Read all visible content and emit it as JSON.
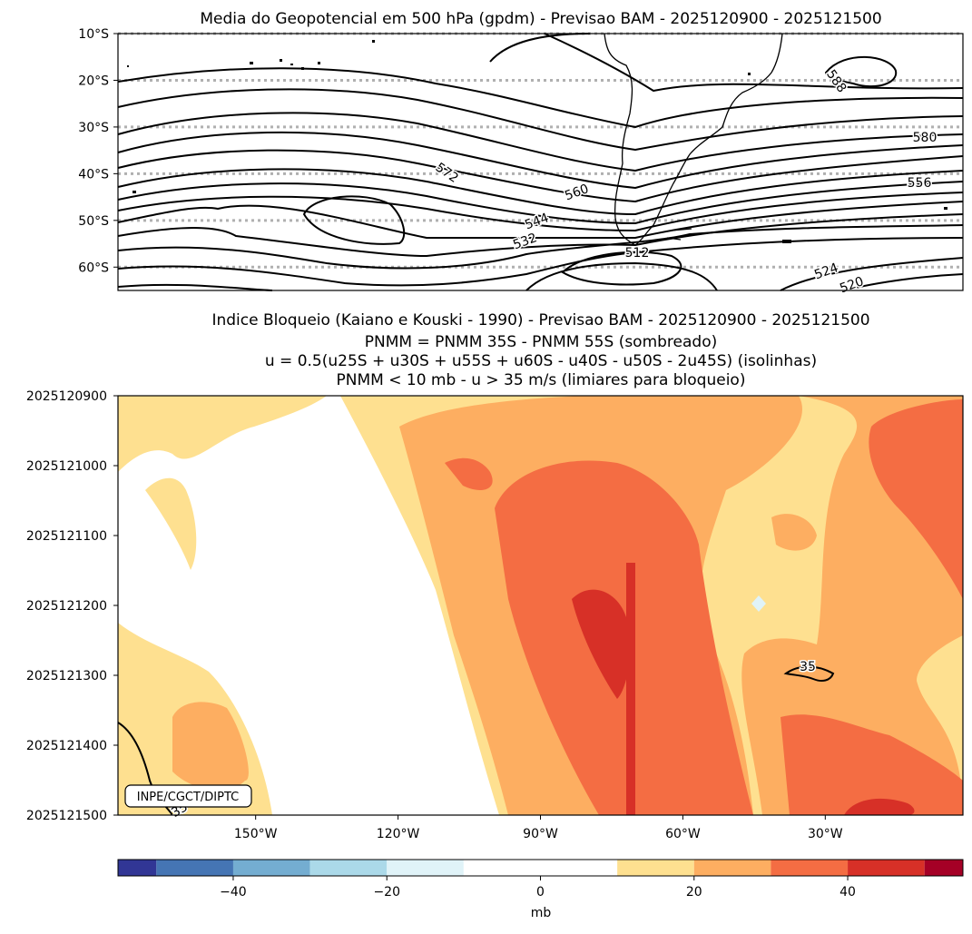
{
  "chart_data": [
    {
      "type": "contour",
      "title": "Media do Geopotencial em 500 hPa (gpdm) - Previsao BAM - 2025120900 - 2025121500",
      "y_tick_labels": [
        "10°S",
        "20°S",
        "30°S",
        "40°S",
        "50°S",
        "60°S"
      ],
      "ylim": [
        -65,
        -10
      ],
      "grid_latitudes": [
        -10,
        -20,
        -30,
        -40,
        -50,
        -60
      ],
      "grid": "dotted latitude lines",
      "contour_labels": [
        "588",
        "580",
        "572",
        "560",
        "556",
        "544",
        "532",
        "524",
        "520",
        "512"
      ],
      "contour_levels_gpdm": [
        508,
        512,
        516,
        520,
        524,
        528,
        532,
        536,
        540,
        544,
        548,
        552,
        556,
        560,
        564,
        568,
        572,
        576,
        580,
        584,
        588
      ],
      "colors": {
        "contour": "#000000",
        "grid": "#b0b0b0"
      }
    },
    {
      "type": "heatmap",
      "title_lines": [
        "Indice Bloqueio (Kaiano e Kouski - 1990) - Previsao BAM - 2025120900 - 2025121500",
        "PNMM = PNMM 35S - PNMM 55S (sombreado)",
        "u = 0.5(u25S + u30S + u55S + u60S - u40S - u50S - 2u45S) (isolinhas)",
        "PNMM < 10 mb - u > 35 m/s (limiares para bloqueio)"
      ],
      "y_tick_labels": [
        "2025120900",
        "2025121000",
        "2025121100",
        "2025121200",
        "2025121300",
        "2025121400",
        "2025121500"
      ],
      "x_tick_labels": [
        "150°W",
        "120°W",
        "90°W",
        "60°W",
        "30°W"
      ],
      "x_tick_values_deg": [
        -150,
        -120,
        -90,
        -60,
        -30
      ],
      "xlim_deg": [
        -179,
        -1
      ],
      "contour_labels": [
        "35",
        "35"
      ],
      "contour_level_ms": 35,
      "annotation": "INPE/CGCT/DIPTC",
      "colorbar": {
        "label": "mb",
        "tick_labels": [
          "−40",
          "−20",
          "0",
          "20",
          "40"
        ],
        "tick_values": [
          -40,
          -20,
          0,
          20,
          40
        ],
        "range": [
          -55,
          55
        ],
        "bounds": [
          -55,
          -50,
          -40,
          -30,
          -20,
          -10,
          10,
          20,
          30,
          40,
          50,
          55
        ],
        "colors": [
          "#313695",
          "#4575b4",
          "#74add1",
          "#abd9e9",
          "#e0f3f8",
          "#ffffff",
          "#fee090",
          "#fdae61",
          "#f46d43",
          "#d73027",
          "#a50026"
        ]
      }
    }
  ]
}
